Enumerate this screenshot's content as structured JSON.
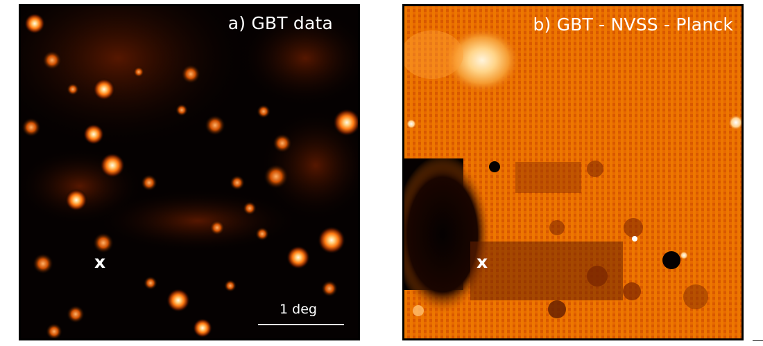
{
  "panels": {
    "left": {
      "title": "a) GBT data",
      "marker": "x",
      "scalebar_label": "1 deg"
    },
    "right": {
      "title": "b) GBT - NVSS - Planck",
      "marker": "x"
    }
  },
  "colors": {
    "background": "#ffffff",
    "frame": "#000000",
    "text": "#ffffff",
    "left_colormap_low": "#050101",
    "left_colormap_high": "#ffffff",
    "right_colormap_mid": "#e86a00",
    "right_colormap_bright": "#ffe7b0"
  }
}
